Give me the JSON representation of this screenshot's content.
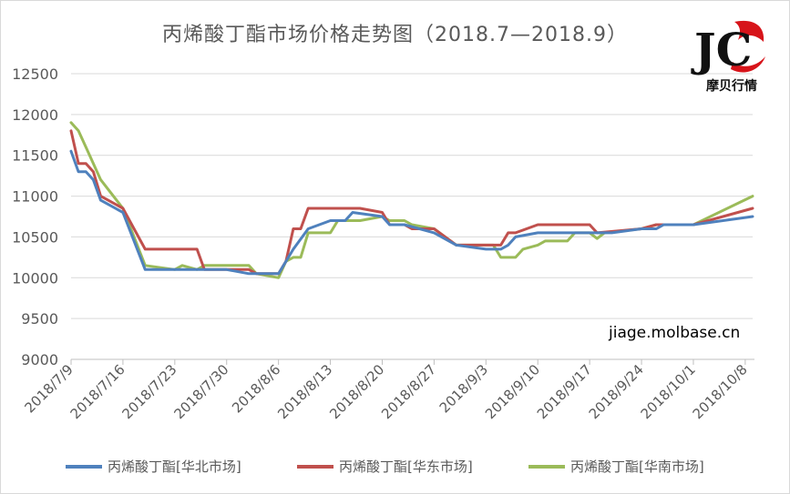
{
  "chart_data": {
    "type": "line",
    "title": "丙烯酸丁酯市场价格走势图（2018.7—2018.9）",
    "xlabel": "",
    "ylabel": "",
    "ylim": [
      9000,
      12500
    ],
    "yticks": [
      9000,
      9500,
      10000,
      10500,
      11000,
      11500,
      12000,
      12500
    ],
    "x_range": [
      "2018/7/9",
      "2018/10/9"
    ],
    "xtick_labels": [
      "2018/7/9",
      "2018/7/16",
      "2018/7/23",
      "2018/7/30",
      "2018/8/6",
      "2018/8/13",
      "2018/8/20",
      "2018/8/27",
      "2018/9/3",
      "2018/9/10",
      "2018/9/17",
      "2018/9/24",
      "2018/10/1",
      "2018/10/8"
    ],
    "grid": "horizontal",
    "legend_position": "bottom",
    "series": [
      {
        "name": "丙烯酸丁酯[华北市场]",
        "color": "#4f81bd",
        "points": [
          [
            "2018/7/9",
            11550
          ],
          [
            "2018/7/10",
            11300
          ],
          [
            "2018/7/11",
            11300
          ],
          [
            "2018/7/12",
            11200
          ],
          [
            "2018/7/13",
            10950
          ],
          [
            "2018/7/16",
            10800
          ],
          [
            "2018/7/19",
            10100
          ],
          [
            "2018/7/23",
            10100
          ],
          [
            "2018/7/26",
            10100
          ],
          [
            "2018/7/30",
            10100
          ],
          [
            "2018/8/2",
            10050
          ],
          [
            "2018/8/6",
            10050
          ],
          [
            "2018/8/8",
            10350
          ],
          [
            "2018/8/10",
            10600
          ],
          [
            "2018/8/13",
            10700
          ],
          [
            "2018/8/15",
            10700
          ],
          [
            "2018/8/16",
            10800
          ],
          [
            "2018/8/20",
            10750
          ],
          [
            "2018/8/21",
            10650
          ],
          [
            "2018/8/23",
            10650
          ],
          [
            "2018/8/27",
            10550
          ],
          [
            "2018/8/30",
            10400
          ],
          [
            "2018/9/3",
            10350
          ],
          [
            "2018/9/5",
            10350
          ],
          [
            "2018/9/6",
            10400
          ],
          [
            "2018/9/7",
            10500
          ],
          [
            "2018/9/10",
            10550
          ],
          [
            "2018/9/13",
            10550
          ],
          [
            "2018/9/17",
            10550
          ],
          [
            "2018/9/20",
            10550
          ],
          [
            "2018/9/24",
            10600
          ],
          [
            "2018/9/26",
            10600
          ],
          [
            "2018/9/27",
            10650
          ],
          [
            "2018/10/1",
            10650
          ],
          [
            "2018/10/9",
            10750
          ]
        ]
      },
      {
        "name": "丙烯酸丁酯[华东市场]",
        "color": "#c0504d",
        "points": [
          [
            "2018/7/9",
            11800
          ],
          [
            "2018/7/10",
            11400
          ],
          [
            "2018/7/11",
            11400
          ],
          [
            "2018/7/12",
            11300
          ],
          [
            "2018/7/13",
            11000
          ],
          [
            "2018/7/16",
            10850
          ],
          [
            "2018/7/19",
            10350
          ],
          [
            "2018/7/26",
            10350
          ],
          [
            "2018/7/27",
            10100
          ],
          [
            "2018/8/2",
            10100
          ],
          [
            "2018/8/3",
            10050
          ],
          [
            "2018/8/6",
            10050
          ],
          [
            "2018/8/7",
            10200
          ],
          [
            "2018/8/8",
            10600
          ],
          [
            "2018/8/9",
            10600
          ],
          [
            "2018/8/10",
            10850
          ],
          [
            "2018/8/17",
            10850
          ],
          [
            "2018/8/20",
            10800
          ],
          [
            "2018/8/21",
            10650
          ],
          [
            "2018/8/23",
            10650
          ],
          [
            "2018/8/24",
            10600
          ],
          [
            "2018/8/27",
            10600
          ],
          [
            "2018/8/30",
            10400
          ],
          [
            "2018/9/5",
            10400
          ],
          [
            "2018/9/6",
            10550
          ],
          [
            "2018/9/7",
            10550
          ],
          [
            "2018/9/10",
            10650
          ],
          [
            "2018/9/17",
            10650
          ],
          [
            "2018/9/18",
            10550
          ],
          [
            "2018/9/24",
            10600
          ],
          [
            "2018/9/26",
            10650
          ],
          [
            "2018/10/1",
            10650
          ],
          [
            "2018/10/9",
            10850
          ]
        ]
      },
      {
        "name": "丙烯酸丁酯[华南市场]",
        "color": "#9bbb59",
        "points": [
          [
            "2018/7/9",
            11900
          ],
          [
            "2018/7/10",
            11800
          ],
          [
            "2018/7/11",
            11600
          ],
          [
            "2018/7/13",
            11200
          ],
          [
            "2018/7/16",
            10850
          ],
          [
            "2018/7/19",
            10150
          ],
          [
            "2018/7/23",
            10100
          ],
          [
            "2018/7/24",
            10150
          ],
          [
            "2018/7/26",
            10100
          ],
          [
            "2018/7/27",
            10150
          ],
          [
            "2018/8/2",
            10150
          ],
          [
            "2018/8/3",
            10050
          ],
          [
            "2018/8/6",
            10000
          ],
          [
            "2018/8/7",
            10200
          ],
          [
            "2018/8/8",
            10250
          ],
          [
            "2018/8/9",
            10250
          ],
          [
            "2018/8/10",
            10550
          ],
          [
            "2018/8/13",
            10550
          ],
          [
            "2018/8/14",
            10700
          ],
          [
            "2018/8/17",
            10700
          ],
          [
            "2018/8/20",
            10750
          ],
          [
            "2018/8/21",
            10700
          ],
          [
            "2018/8/23",
            10700
          ],
          [
            "2018/8/24",
            10650
          ],
          [
            "2018/8/27",
            10600
          ],
          [
            "2018/8/30",
            10400
          ],
          [
            "2018/9/4",
            10400
          ],
          [
            "2018/9/5",
            10250
          ],
          [
            "2018/9/7",
            10250
          ],
          [
            "2018/9/8",
            10350
          ],
          [
            "2018/9/10",
            10400
          ],
          [
            "2018/9/11",
            10450
          ],
          [
            "2018/9/14",
            10450
          ],
          [
            "2018/9/15",
            10550
          ],
          [
            "2018/9/17",
            10550
          ],
          [
            "2018/9/18",
            10480
          ],
          [
            "2018/9/19",
            10550
          ],
          [
            "2018/9/24",
            10600
          ],
          [
            "2018/9/26",
            10650
          ],
          [
            "2018/10/1",
            10650
          ],
          [
            "2018/10/9",
            11000
          ]
        ]
      }
    ]
  },
  "watermark": "jiage.molbase.cn",
  "logo": {
    "text": "摩贝行情",
    "letters": "JC",
    "colors": {
      "letters": "#111111",
      "accent": "#d7141a"
    }
  }
}
